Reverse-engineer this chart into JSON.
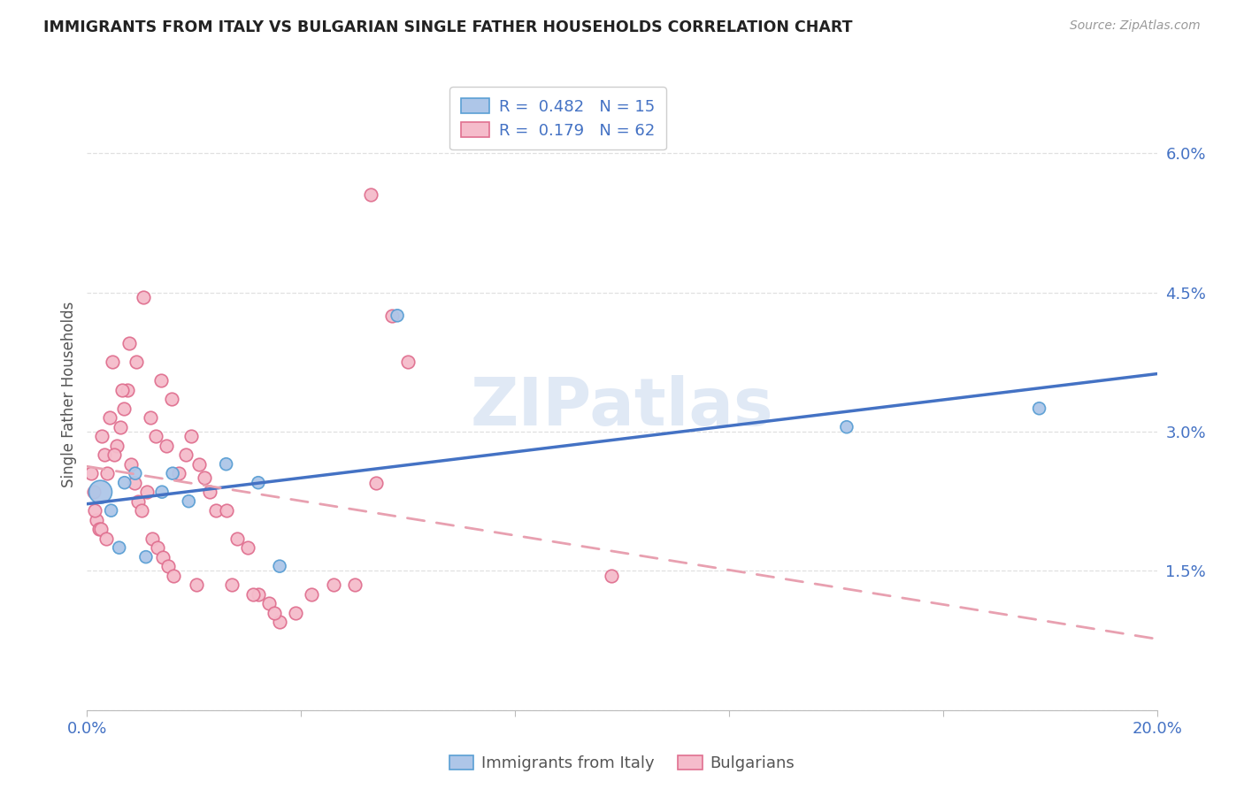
{
  "title": "IMMIGRANTS FROM ITALY VS BULGARIAN SINGLE FATHER HOUSEHOLDS CORRELATION CHART",
  "source": "Source: ZipAtlas.com",
  "ylabel": "Single Father Households",
  "legend_label1": "Immigrants from Italy",
  "legend_label2": "Bulgarians",
  "legend_r1": "R =  0.482",
  "legend_n1": "N = 15",
  "legend_r2": "R =  0.179",
  "legend_n2": "N = 62",
  "watermark": "ZIPatlas",
  "xmin": 0.0,
  "xmax": 20.0,
  "ymin": 0.0,
  "ymax": 6.8,
  "yticks": [
    0.0,
    1.5,
    3.0,
    4.5,
    6.0
  ],
  "ytick_labels": [
    "",
    "1.5%",
    "3.0%",
    "4.5%",
    "6.0%"
  ],
  "xticks": [
    0.0,
    4.0,
    8.0,
    12.0,
    16.0,
    20.0
  ],
  "xtick_labels": [
    "0.0%",
    "",
    "",
    "",
    "",
    "20.0%"
  ],
  "blue_scatter_x": [
    0.25,
    0.45,
    0.6,
    0.7,
    0.9,
    1.1,
    1.4,
    1.6,
    1.9,
    2.6,
    3.2,
    3.6,
    5.8,
    14.2,
    17.8
  ],
  "blue_scatter_y": [
    2.35,
    2.15,
    1.75,
    2.45,
    2.55,
    1.65,
    2.35,
    2.55,
    2.25,
    2.65,
    2.45,
    1.55,
    4.25,
    3.05,
    3.25
  ],
  "blue_scatter_sizes": [
    350,
    100,
    100,
    100,
    100,
    100,
    100,
    100,
    100,
    100,
    100,
    100,
    100,
    100,
    100
  ],
  "pink_scatter_x": [
    0.08,
    0.12,
    0.18,
    0.22,
    0.28,
    0.33,
    0.38,
    0.43,
    0.48,
    0.55,
    0.62,
    0.68,
    0.75,
    0.82,
    0.88,
    0.95,
    1.02,
    1.12,
    1.22,
    1.32,
    1.42,
    1.52,
    1.62,
    1.72,
    1.85,
    1.95,
    2.05,
    2.2,
    2.4,
    2.6,
    2.8,
    3.0,
    3.2,
    3.4,
    3.6,
    3.9,
    4.2,
    4.6,
    5.0,
    5.4,
    5.7,
    6.0,
    0.15,
    0.25,
    0.35,
    0.5,
    0.65,
    0.78,
    0.92,
    1.05,
    1.18,
    1.28,
    1.38,
    1.48,
    1.58,
    2.1,
    2.3,
    2.7,
    3.1,
    3.5,
    9.8,
    5.3
  ],
  "pink_scatter_y": [
    2.55,
    2.35,
    2.05,
    1.95,
    2.95,
    2.75,
    2.55,
    3.15,
    3.75,
    2.85,
    3.05,
    3.25,
    3.45,
    2.65,
    2.45,
    2.25,
    2.15,
    2.35,
    1.85,
    1.75,
    1.65,
    1.55,
    1.45,
    2.55,
    2.75,
    2.95,
    1.35,
    2.5,
    2.15,
    2.15,
    1.85,
    1.75,
    1.25,
    1.15,
    0.95,
    1.05,
    1.25,
    1.35,
    1.35,
    2.45,
    4.25,
    3.75,
    2.15,
    1.95,
    1.85,
    2.75,
    3.45,
    3.95,
    3.75,
    4.45,
    3.15,
    2.95,
    3.55,
    2.85,
    3.35,
    2.65,
    2.35,
    1.35,
    1.25,
    1.05,
    1.45,
    5.55
  ],
  "blue_color": "#aec6e8",
  "blue_edge_color": "#5a9fd4",
  "pink_color": "#f5bccb",
  "pink_edge_color": "#e07090",
  "blue_line_color": "#4472c4",
  "pink_line_color": "#e8a0b0",
  "title_color": "#222222",
  "axis_label_color": "#4472c4",
  "grid_color": "#e0e0e0",
  "watermark_color": "#c8d8ee"
}
